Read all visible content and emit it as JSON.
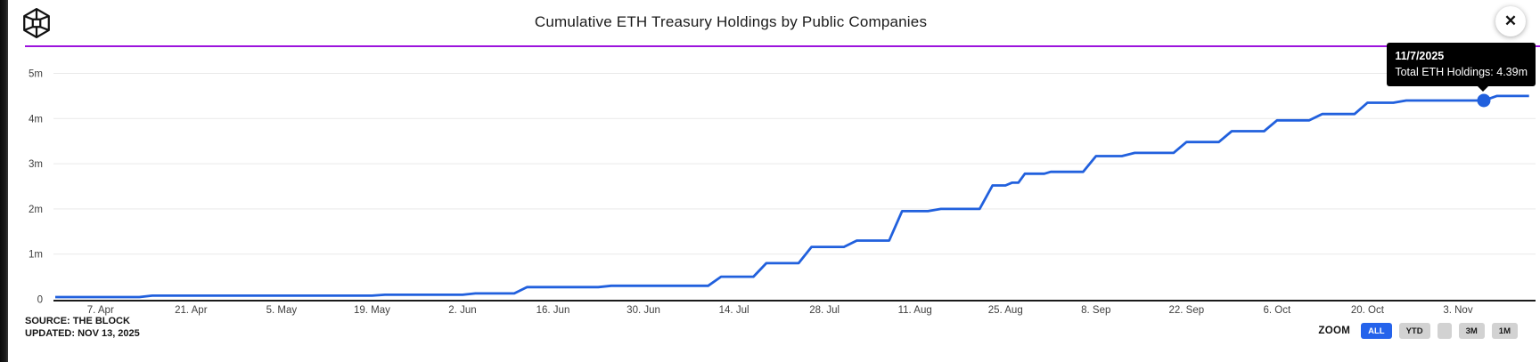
{
  "header": {
    "title": "Cumulative ETH Treasury Holdings by Public Companies",
    "logo_name": "the-block-logo",
    "close_label": "✕"
  },
  "tooltip": {
    "date": "11/7/2025",
    "text": "Total ETH Holdings: 4.39m"
  },
  "source": {
    "line1": "SOURCE: THE BLOCK",
    "line2": "UPDATED: NOV 13, 2025"
  },
  "zoom": {
    "label": "ZOOM",
    "buttons": [
      {
        "label": "ALL",
        "active": true
      },
      {
        "label": "YTD",
        "active": false
      },
      {
        "label": "",
        "active": false
      },
      {
        "label": "3M",
        "active": false
      },
      {
        "label": "1M",
        "active": false
      }
    ]
  },
  "colors": {
    "line": "#2160dd",
    "grid": "#e9e9e9",
    "axis": "#1a1a1a",
    "tick_text": "#404040",
    "accent_purple": "#9c13dd",
    "active_button": "#2563eb",
    "tooltip_bg": "#000000"
  },
  "chart_data": {
    "type": "line",
    "style": "step",
    "title": "Cumulative ETH Treasury Holdings by Public Companies",
    "ylabel": "",
    "xlabel": "",
    "ylim_eth": [
      0,
      5000000
    ],
    "grid": "horizontal",
    "legend": "none",
    "x_epoch": "day 0 = 2025-03-31",
    "x_range_days": 229,
    "y_ticks": [
      {
        "label": "0",
        "v": 0
      },
      {
        "label": "1m",
        "v": 1
      },
      {
        "label": "2m",
        "v": 2
      },
      {
        "label": "3m",
        "v": 3
      },
      {
        "label": "4m",
        "v": 4
      },
      {
        "label": "5m",
        "v": 5
      }
    ],
    "x_ticks": [
      {
        "label": "7. Apr",
        "day": 7
      },
      {
        "label": "21. Apr",
        "day": 21
      },
      {
        "label": "5. May",
        "day": 35
      },
      {
        "label": "19. May",
        "day": 49
      },
      {
        "label": "2. Jun",
        "day": 63
      },
      {
        "label": "16. Jun",
        "day": 77
      },
      {
        "label": "30. Jun",
        "day": 91
      },
      {
        "label": "14. Jul",
        "day": 105
      },
      {
        "label": "28. Jul",
        "day": 119
      },
      {
        "label": "11. Aug",
        "day": 133
      },
      {
        "label": "25. Aug",
        "day": 147
      },
      {
        "label": "8. Sep",
        "day": 161
      },
      {
        "label": "22. Sep",
        "day": 175
      },
      {
        "label": "6. Oct",
        "day": 189
      },
      {
        "label": "20. Oct",
        "day": 203
      },
      {
        "label": "3. Nov",
        "day": 217
      }
    ],
    "series": [
      {
        "name": "Total ETH Holdings",
        "unit": "millions of ETH",
        "points": [
          [
            0,
            0.05
          ],
          [
            13,
            0.05
          ],
          [
            15,
            0.08
          ],
          [
            49,
            0.08
          ],
          [
            51,
            0.1
          ],
          [
            63,
            0.1
          ],
          [
            65,
            0.13
          ],
          [
            71,
            0.13
          ],
          [
            73,
            0.27
          ],
          [
            84,
            0.27
          ],
          [
            86,
            0.3
          ],
          [
            101,
            0.3
          ],
          [
            103,
            0.5
          ],
          [
            108,
            0.5
          ],
          [
            110,
            0.8
          ],
          [
            115,
            0.8
          ],
          [
            117,
            1.16
          ],
          [
            122,
            1.16
          ],
          [
            124,
            1.3
          ],
          [
            129,
            1.3
          ],
          [
            131,
            1.95
          ],
          [
            135,
            1.95
          ],
          [
            137,
            2.0
          ],
          [
            143,
            2.0
          ],
          [
            145,
            2.52
          ],
          [
            147,
            2.52
          ],
          [
            148,
            2.58
          ],
          [
            149,
            2.58
          ],
          [
            150,
            2.78
          ],
          [
            153,
            2.78
          ],
          [
            154,
            2.82
          ],
          [
            159,
            2.82
          ],
          [
            161,
            3.17
          ],
          [
            165,
            3.17
          ],
          [
            167,
            3.24
          ],
          [
            173,
            3.24
          ],
          [
            175,
            3.48
          ],
          [
            180,
            3.48
          ],
          [
            182,
            3.72
          ],
          [
            187,
            3.72
          ],
          [
            189,
            3.96
          ],
          [
            194,
            3.96
          ],
          [
            196,
            4.1
          ],
          [
            201,
            4.1
          ],
          [
            203,
            4.35
          ],
          [
            207,
            4.35
          ],
          [
            209,
            4.4
          ],
          [
            221,
            4.4
          ],
          [
            223,
            4.5
          ],
          [
            228,
            4.5
          ]
        ]
      }
    ],
    "highlight_point": {
      "day": 221,
      "date": "11/7/2025",
      "value_m": 4.39,
      "display": "Total ETH Holdings: 4.39m"
    }
  }
}
